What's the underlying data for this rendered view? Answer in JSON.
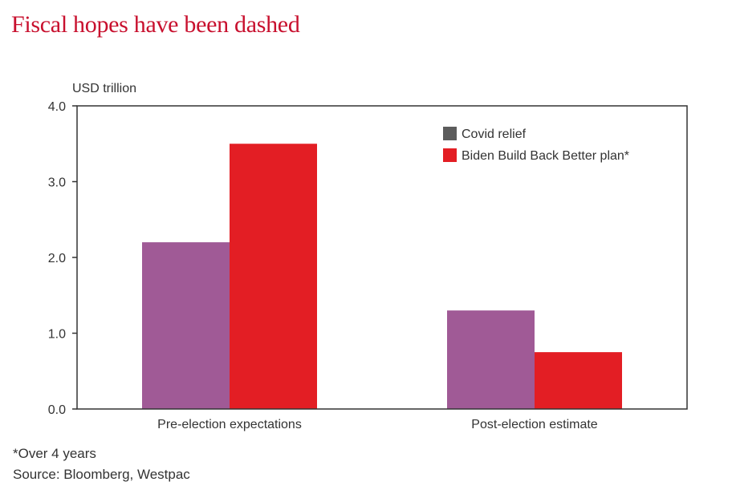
{
  "colors": {
    "title": "#c8102e",
    "covid": "#a05a96",
    "covid_legend": "#5c5c5c",
    "bbb": "#e31e24",
    "axis": "#333333",
    "text": "#333333"
  },
  "chart_data": {
    "type": "bar",
    "title": "Fiscal hopes have been dashed",
    "ylabel": "USD trillion",
    "xlabel": "",
    "categories": [
      "Pre-election expectations",
      "Post-election estimate"
    ],
    "series": [
      {
        "name": "Covid relief",
        "values": [
          2.2,
          1.3
        ]
      },
      {
        "name": "Biden Build Back Better plan*",
        "values": [
          3.5,
          0.75
        ]
      }
    ],
    "ylim": [
      0,
      4
    ],
    "yticks": [
      "0.0",
      "1.0",
      "2.0",
      "3.0",
      "4.0"
    ],
    "grid": false,
    "legend": "top-right"
  },
  "notes": {
    "footnote": "*Over 4 years",
    "source": "Source: Bloomberg, Westpac"
  }
}
